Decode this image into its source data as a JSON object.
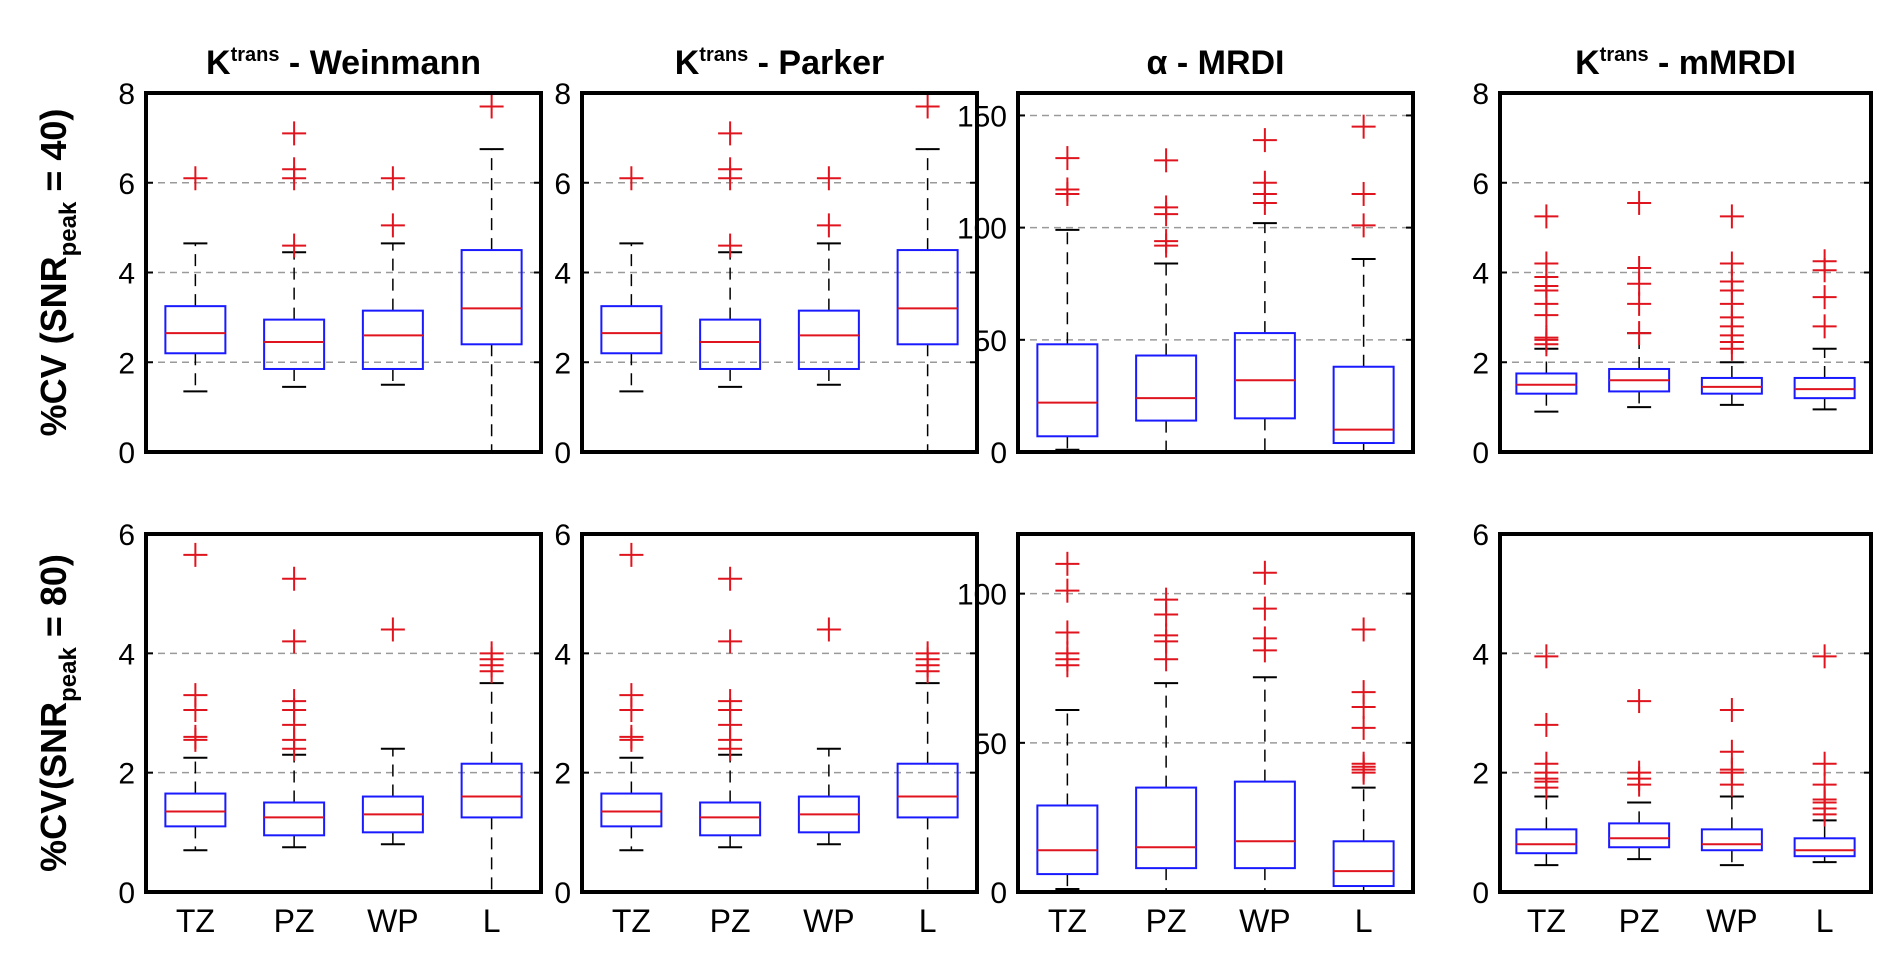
{
  "colors": {
    "box": "#1a1aff",
    "median": "#e0141e",
    "outlier": "#e0141e",
    "whisker": "#000000",
    "grid": "#9a9a9a",
    "frame": "#000000"
  },
  "row_labels": [
    {
      "prefix": "%CV (SNR",
      "sub": "peak",
      "suffix": " = 40)"
    },
    {
      "prefix": "%CV(SNR",
      "sub": "peak",
      "suffix": " = 80)"
    }
  ],
  "chart_data": [
    {
      "type": "box",
      "title_main": "K",
      "title_sup": "trans",
      "title_rest": " - Weinmann",
      "categories": [
        "TZ",
        "PZ",
        "WP",
        "L"
      ],
      "ylim": [
        0,
        8
      ],
      "yticks": [
        0,
        2,
        4,
        6,
        8
      ],
      "grid_y": [
        2,
        4,
        6
      ],
      "show_xticks": false,
      "boxes": [
        {
          "category": "TZ",
          "whisker_low": 1.35,
          "q1": 2.2,
          "median": 2.65,
          "q3": 3.25,
          "whisker_high": 4.65,
          "outliers": [
            6.1
          ]
        },
        {
          "category": "PZ",
          "whisker_low": 1.45,
          "q1": 1.85,
          "median": 2.45,
          "q3": 2.95,
          "whisker_high": 4.45,
          "outliers": [
            4.6,
            6.1,
            6.3,
            7.1
          ]
        },
        {
          "category": "WP",
          "whisker_low": 1.5,
          "q1": 1.85,
          "median": 2.6,
          "q3": 3.15,
          "whisker_high": 4.65,
          "outliers": [
            5.05,
            6.1
          ]
        },
        {
          "category": "L",
          "whisker_low": 0.0,
          "q1": 2.4,
          "median": 3.2,
          "q3": 4.5,
          "whisker_high": 6.75,
          "outliers": [
            7.7
          ]
        }
      ]
    },
    {
      "type": "box",
      "title_main": "K",
      "title_sup": "trans",
      "title_rest": " - Parker",
      "categories": [
        "TZ",
        "PZ",
        "WP",
        "L"
      ],
      "ylim": [
        0,
        8
      ],
      "yticks": [
        0,
        2,
        4,
        6,
        8
      ],
      "grid_y": [
        2,
        4,
        6
      ],
      "show_xticks": false,
      "boxes": [
        {
          "category": "TZ",
          "whisker_low": 1.35,
          "q1": 2.2,
          "median": 2.65,
          "q3": 3.25,
          "whisker_high": 4.65,
          "outliers": [
            6.1
          ]
        },
        {
          "category": "PZ",
          "whisker_low": 1.45,
          "q1": 1.85,
          "median": 2.45,
          "q3": 2.95,
          "whisker_high": 4.45,
          "outliers": [
            4.6,
            6.1,
            6.3,
            7.1
          ]
        },
        {
          "category": "WP",
          "whisker_low": 1.5,
          "q1": 1.85,
          "median": 2.6,
          "q3": 3.15,
          "whisker_high": 4.65,
          "outliers": [
            5.05,
            6.1
          ]
        },
        {
          "category": "L",
          "whisker_low": 0.0,
          "q1": 2.4,
          "median": 3.2,
          "q3": 4.5,
          "whisker_high": 6.75,
          "outliers": [
            7.7
          ]
        }
      ]
    },
    {
      "type": "box",
      "title_main": "α",
      "title_sup": "",
      "title_rest": " - MRDI",
      "categories": [
        "TZ",
        "PZ",
        "WP",
        "L"
      ],
      "ylim": [
        0,
        160
      ],
      "yticks": [
        0,
        50,
        100,
        150
      ],
      "grid_y": [
        50,
        100,
        150
      ],
      "show_xticks": false,
      "boxes": [
        {
          "category": "TZ",
          "whisker_low": 1,
          "q1": 7,
          "median": 22,
          "q3": 48,
          "whisker_high": 99,
          "outliers": [
            115,
            117,
            131
          ]
        },
        {
          "category": "PZ",
          "whisker_low": 0,
          "q1": 14,
          "median": 24,
          "q3": 43,
          "whisker_high": 84,
          "outliers": [
            92,
            94,
            106,
            109,
            130
          ]
        },
        {
          "category": "WP",
          "whisker_low": 0,
          "q1": 15,
          "median": 32,
          "q3": 53,
          "whisker_high": 102,
          "outliers": [
            111,
            115,
            120,
            139
          ]
        },
        {
          "category": "L",
          "whisker_low": 0,
          "q1": 4,
          "median": 10,
          "q3": 38,
          "whisker_high": 86,
          "outliers": [
            101,
            115,
            145
          ]
        }
      ]
    },
    {
      "type": "box",
      "title_main": "K",
      "title_sup": "trans",
      "title_rest": " - mMRDI",
      "categories": [
        "TZ",
        "PZ",
        "WP",
        "L"
      ],
      "ylim": [
        0,
        8
      ],
      "yticks": [
        0,
        2,
        4,
        6,
        8
      ],
      "grid_y": [
        2,
        4,
        6
      ],
      "show_xticks": false,
      "boxes": [
        {
          "category": "TZ",
          "whisker_low": 0.9,
          "q1": 1.3,
          "median": 1.5,
          "q3": 1.75,
          "whisker_high": 2.3,
          "outliers": [
            2.4,
            2.5,
            2.55,
            3.05,
            3.3,
            3.6,
            3.7,
            3.9,
            4.2,
            5.25
          ]
        },
        {
          "category": "PZ",
          "whisker_low": 1.0,
          "q1": 1.35,
          "median": 1.6,
          "q3": 1.85,
          "whisker_high": 2.65,
          "outliers": [
            2.65,
            3.3,
            3.75,
            4.1,
            5.55
          ]
        },
        {
          "category": "WP",
          "whisker_low": 1.05,
          "q1": 1.3,
          "median": 1.45,
          "q3": 1.65,
          "whisker_high": 2.0,
          "outliers": [
            2.3,
            2.45,
            2.6,
            2.8,
            3.0,
            3.3,
            3.6,
            3.8,
            4.2,
            5.25
          ]
        },
        {
          "category": "L",
          "whisker_low": 0.95,
          "q1": 1.2,
          "median": 1.4,
          "q3": 1.65,
          "whisker_high": 2.3,
          "outliers": [
            2.8,
            3.45,
            4.05,
            4.25
          ]
        }
      ]
    },
    {
      "type": "box",
      "title_main": "",
      "title_sup": "",
      "title_rest": "",
      "categories": [
        "TZ",
        "PZ",
        "WP",
        "L"
      ],
      "ylim": [
        0,
        6
      ],
      "yticks": [
        0,
        2,
        4,
        6
      ],
      "grid_y": [
        2,
        4
      ],
      "show_xticks": true,
      "boxes": [
        {
          "category": "TZ",
          "whisker_low": 0.7,
          "q1": 1.1,
          "median": 1.35,
          "q3": 1.65,
          "whisker_high": 2.25,
          "outliers": [
            2.55,
            2.6,
            3.05,
            3.3,
            5.65
          ]
        },
        {
          "category": "PZ",
          "whisker_low": 0.75,
          "q1": 0.95,
          "median": 1.25,
          "q3": 1.5,
          "whisker_high": 2.3,
          "outliers": [
            2.4,
            2.55,
            2.8,
            3.05,
            3.2,
            4.2,
            5.25
          ]
        },
        {
          "category": "WP",
          "whisker_low": 0.8,
          "q1": 1.0,
          "median": 1.3,
          "q3": 1.6,
          "whisker_high": 2.4,
          "outliers": [
            4.4
          ]
        },
        {
          "category": "L",
          "whisker_low": 0.0,
          "q1": 1.25,
          "median": 1.6,
          "q3": 2.15,
          "whisker_high": 3.5,
          "outliers": [
            3.7,
            3.8,
            3.9,
            4.0
          ]
        }
      ]
    },
    {
      "type": "box",
      "title_main": "",
      "title_sup": "",
      "title_rest": "",
      "categories": [
        "TZ",
        "PZ",
        "WP",
        "L"
      ],
      "ylim": [
        0,
        6
      ],
      "yticks": [
        0,
        2,
        4,
        6
      ],
      "grid_y": [
        2,
        4
      ],
      "show_xticks": true,
      "boxes": [
        {
          "category": "TZ",
          "whisker_low": 0.7,
          "q1": 1.1,
          "median": 1.35,
          "q3": 1.65,
          "whisker_high": 2.25,
          "outliers": [
            2.55,
            2.6,
            3.05,
            3.3,
            5.65
          ]
        },
        {
          "category": "PZ",
          "whisker_low": 0.75,
          "q1": 0.95,
          "median": 1.25,
          "q3": 1.5,
          "whisker_high": 2.3,
          "outliers": [
            2.4,
            2.55,
            2.8,
            3.05,
            3.2,
            4.2,
            5.25
          ]
        },
        {
          "category": "WP",
          "whisker_low": 0.8,
          "q1": 1.0,
          "median": 1.3,
          "q3": 1.6,
          "whisker_high": 2.4,
          "outliers": [
            4.4
          ]
        },
        {
          "category": "L",
          "whisker_low": 0.0,
          "q1": 1.25,
          "median": 1.6,
          "q3": 2.15,
          "whisker_high": 3.5,
          "outliers": [
            3.7,
            3.8,
            3.9,
            4.0
          ]
        }
      ]
    },
    {
      "type": "box",
      "title_main": "",
      "title_sup": "",
      "title_rest": "",
      "categories": [
        "TZ",
        "PZ",
        "WP",
        "L"
      ],
      "ylim": [
        0,
        120
      ],
      "yticks": [
        0,
        50,
        100
      ],
      "grid_y": [
        50,
        100
      ],
      "show_xticks": true,
      "boxes": [
        {
          "category": "TZ",
          "whisker_low": 1,
          "q1": 6,
          "median": 14,
          "q3": 29,
          "whisker_high": 61,
          "outliers": [
            76,
            78,
            80,
            87,
            101,
            110
          ]
        },
        {
          "category": "PZ",
          "whisker_low": 0,
          "q1": 8,
          "median": 15,
          "q3": 35,
          "whisker_high": 70,
          "outliers": [
            78,
            84,
            86,
            93,
            98
          ]
        },
        {
          "category": "WP",
          "whisker_low": 0,
          "q1": 8,
          "median": 17,
          "q3": 37,
          "whisker_high": 72,
          "outliers": [
            81,
            85,
            95,
            107
          ]
        },
        {
          "category": "L",
          "whisker_low": 0,
          "q1": 2,
          "median": 7,
          "q3": 17,
          "whisker_high": 35,
          "outliers": [
            40,
            41,
            42,
            43,
            55,
            62,
            67,
            88
          ]
        }
      ]
    },
    {
      "type": "box",
      "title_main": "",
      "title_sup": "",
      "title_rest": "",
      "categories": [
        "TZ",
        "PZ",
        "WP",
        "L"
      ],
      "ylim": [
        0,
        6
      ],
      "yticks": [
        0,
        2,
        4,
        6
      ],
      "grid_y": [
        2,
        4
      ],
      "show_xticks": true,
      "boxes": [
        {
          "category": "TZ",
          "whisker_low": 0.45,
          "q1": 0.65,
          "median": 0.8,
          "q3": 1.05,
          "whisker_high": 1.6,
          "outliers": [
            1.75,
            1.85,
            1.9,
            2.0,
            2.15,
            2.8,
            3.95
          ]
        },
        {
          "category": "PZ",
          "whisker_low": 0.55,
          "q1": 0.75,
          "median": 0.9,
          "q3": 1.15,
          "whisker_high": 1.5,
          "outliers": [
            1.8,
            1.9,
            2.0,
            3.2
          ]
        },
        {
          "category": "WP",
          "whisker_low": 0.45,
          "q1": 0.7,
          "median": 0.8,
          "q3": 1.05,
          "whisker_high": 1.6,
          "outliers": [
            1.8,
            2.0,
            2.05,
            2.35,
            3.05
          ]
        },
        {
          "category": "L",
          "whisker_low": 0.5,
          "q1": 0.6,
          "median": 0.7,
          "q3": 0.9,
          "whisker_high": 1.2,
          "outliers": [
            1.3,
            1.4,
            1.5,
            1.55,
            1.8,
            2.15,
            3.95
          ]
        }
      ]
    }
  ]
}
